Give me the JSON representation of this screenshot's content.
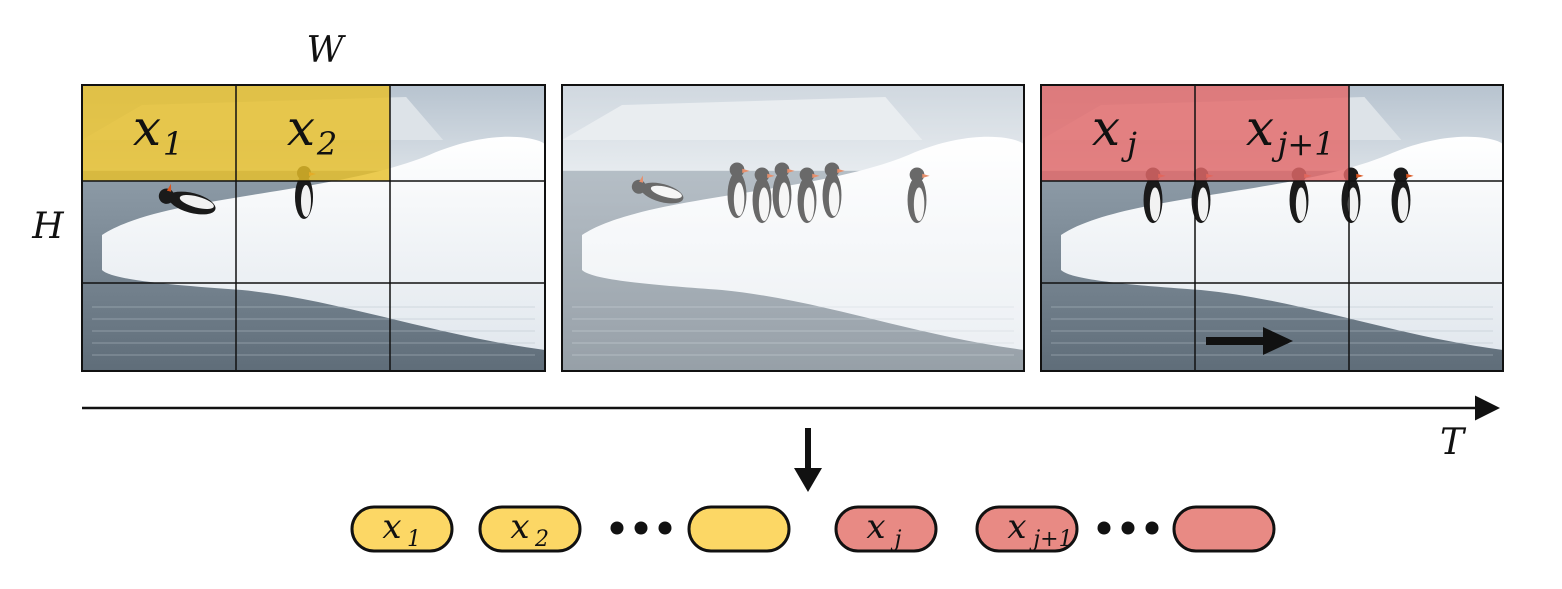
{
  "axes": {
    "width_label": "W",
    "height_label": "H",
    "time_label": "T"
  },
  "frames": [
    {
      "name": "frame-1",
      "highlighted_patches": [
        {
          "row": 0,
          "col": 0,
          "var": "x",
          "sub": "1"
        },
        {
          "row": 0,
          "col": 1,
          "var": "x",
          "sub": "2"
        }
      ],
      "highlight_color": "#e8bf2a"
    },
    {
      "name": "frame-2",
      "highlighted_patches": []
    },
    {
      "name": "frame-3",
      "highlighted_patches": [
        {
          "row": 0,
          "col": 0,
          "var": "x",
          "sub": "j"
        },
        {
          "row": 0,
          "col": 1,
          "var": "x",
          "sub": "j+1"
        }
      ],
      "highlight_color": "#e46a6a",
      "has_motion_arrow": true
    }
  ],
  "grid": {
    "rows": 3,
    "cols": 3
  },
  "tokens": [
    {
      "var": "x",
      "sub": "1",
      "color": "#fcd765"
    },
    {
      "var": "x",
      "sub": "2",
      "color": "#fcd765"
    },
    {
      "ellipsis": true
    },
    {
      "var": "",
      "sub": "",
      "color": "#fcd765"
    },
    {
      "var": "x",
      "sub": "j",
      "color": "#e88a84"
    },
    {
      "var": "x",
      "sub": "j+1",
      "color": "#e88a84"
    },
    {
      "ellipsis": true
    },
    {
      "var": "",
      "sub": "",
      "color": "#e88a84"
    }
  ],
  "colors": {
    "sky": "#c9d3dd",
    "ice": "#f3f6f9",
    "water": "#8f9ca8",
    "grid_line": "#111111",
    "arrow": "#111111"
  }
}
